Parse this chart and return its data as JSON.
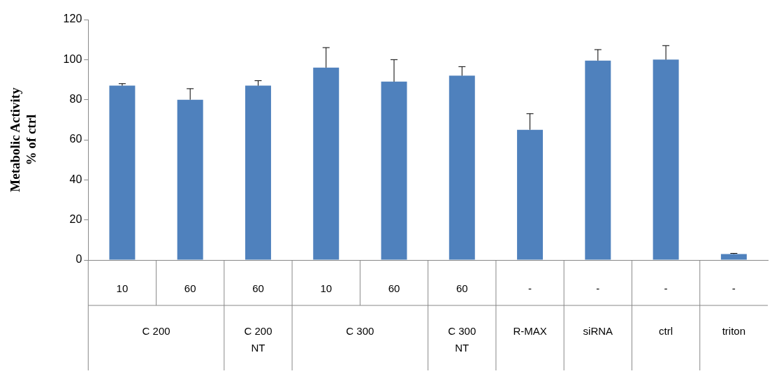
{
  "chart_data": {
    "type": "bar",
    "ylabel": "Metabolic Activity\n% of ctrl",
    "categories": [
      "10",
      "60",
      "60",
      "10",
      "60",
      "60",
      "-",
      "-",
      "-",
      "-"
    ],
    "values": [
      87,
      80,
      87,
      96,
      89,
      92,
      65,
      99.5,
      100,
      3
    ],
    "errors": [
      [
        87,
        88
      ],
      [
        80,
        85.5
      ],
      [
        87,
        89.5
      ],
      [
        96,
        106
      ],
      [
        89,
        100
      ],
      [
        92,
        96.5
      ],
      [
        65,
        73
      ],
      [
        99.5,
        105
      ],
      [
        100,
        107
      ],
      [
        3,
        3.3
      ]
    ],
    "color": "#4f81bd",
    "ylim": [
      0,
      120
    ],
    "yticks": [
      0,
      20,
      40,
      60,
      80,
      100,
      120
    ],
    "grid": false,
    "legend": false,
    "annotations": [
      "C 200",
      "C 200\nNT",
      "C 300",
      "C 300\nNT",
      "R-MAX",
      "siRNA",
      "ctrl",
      "triton"
    ]
  }
}
